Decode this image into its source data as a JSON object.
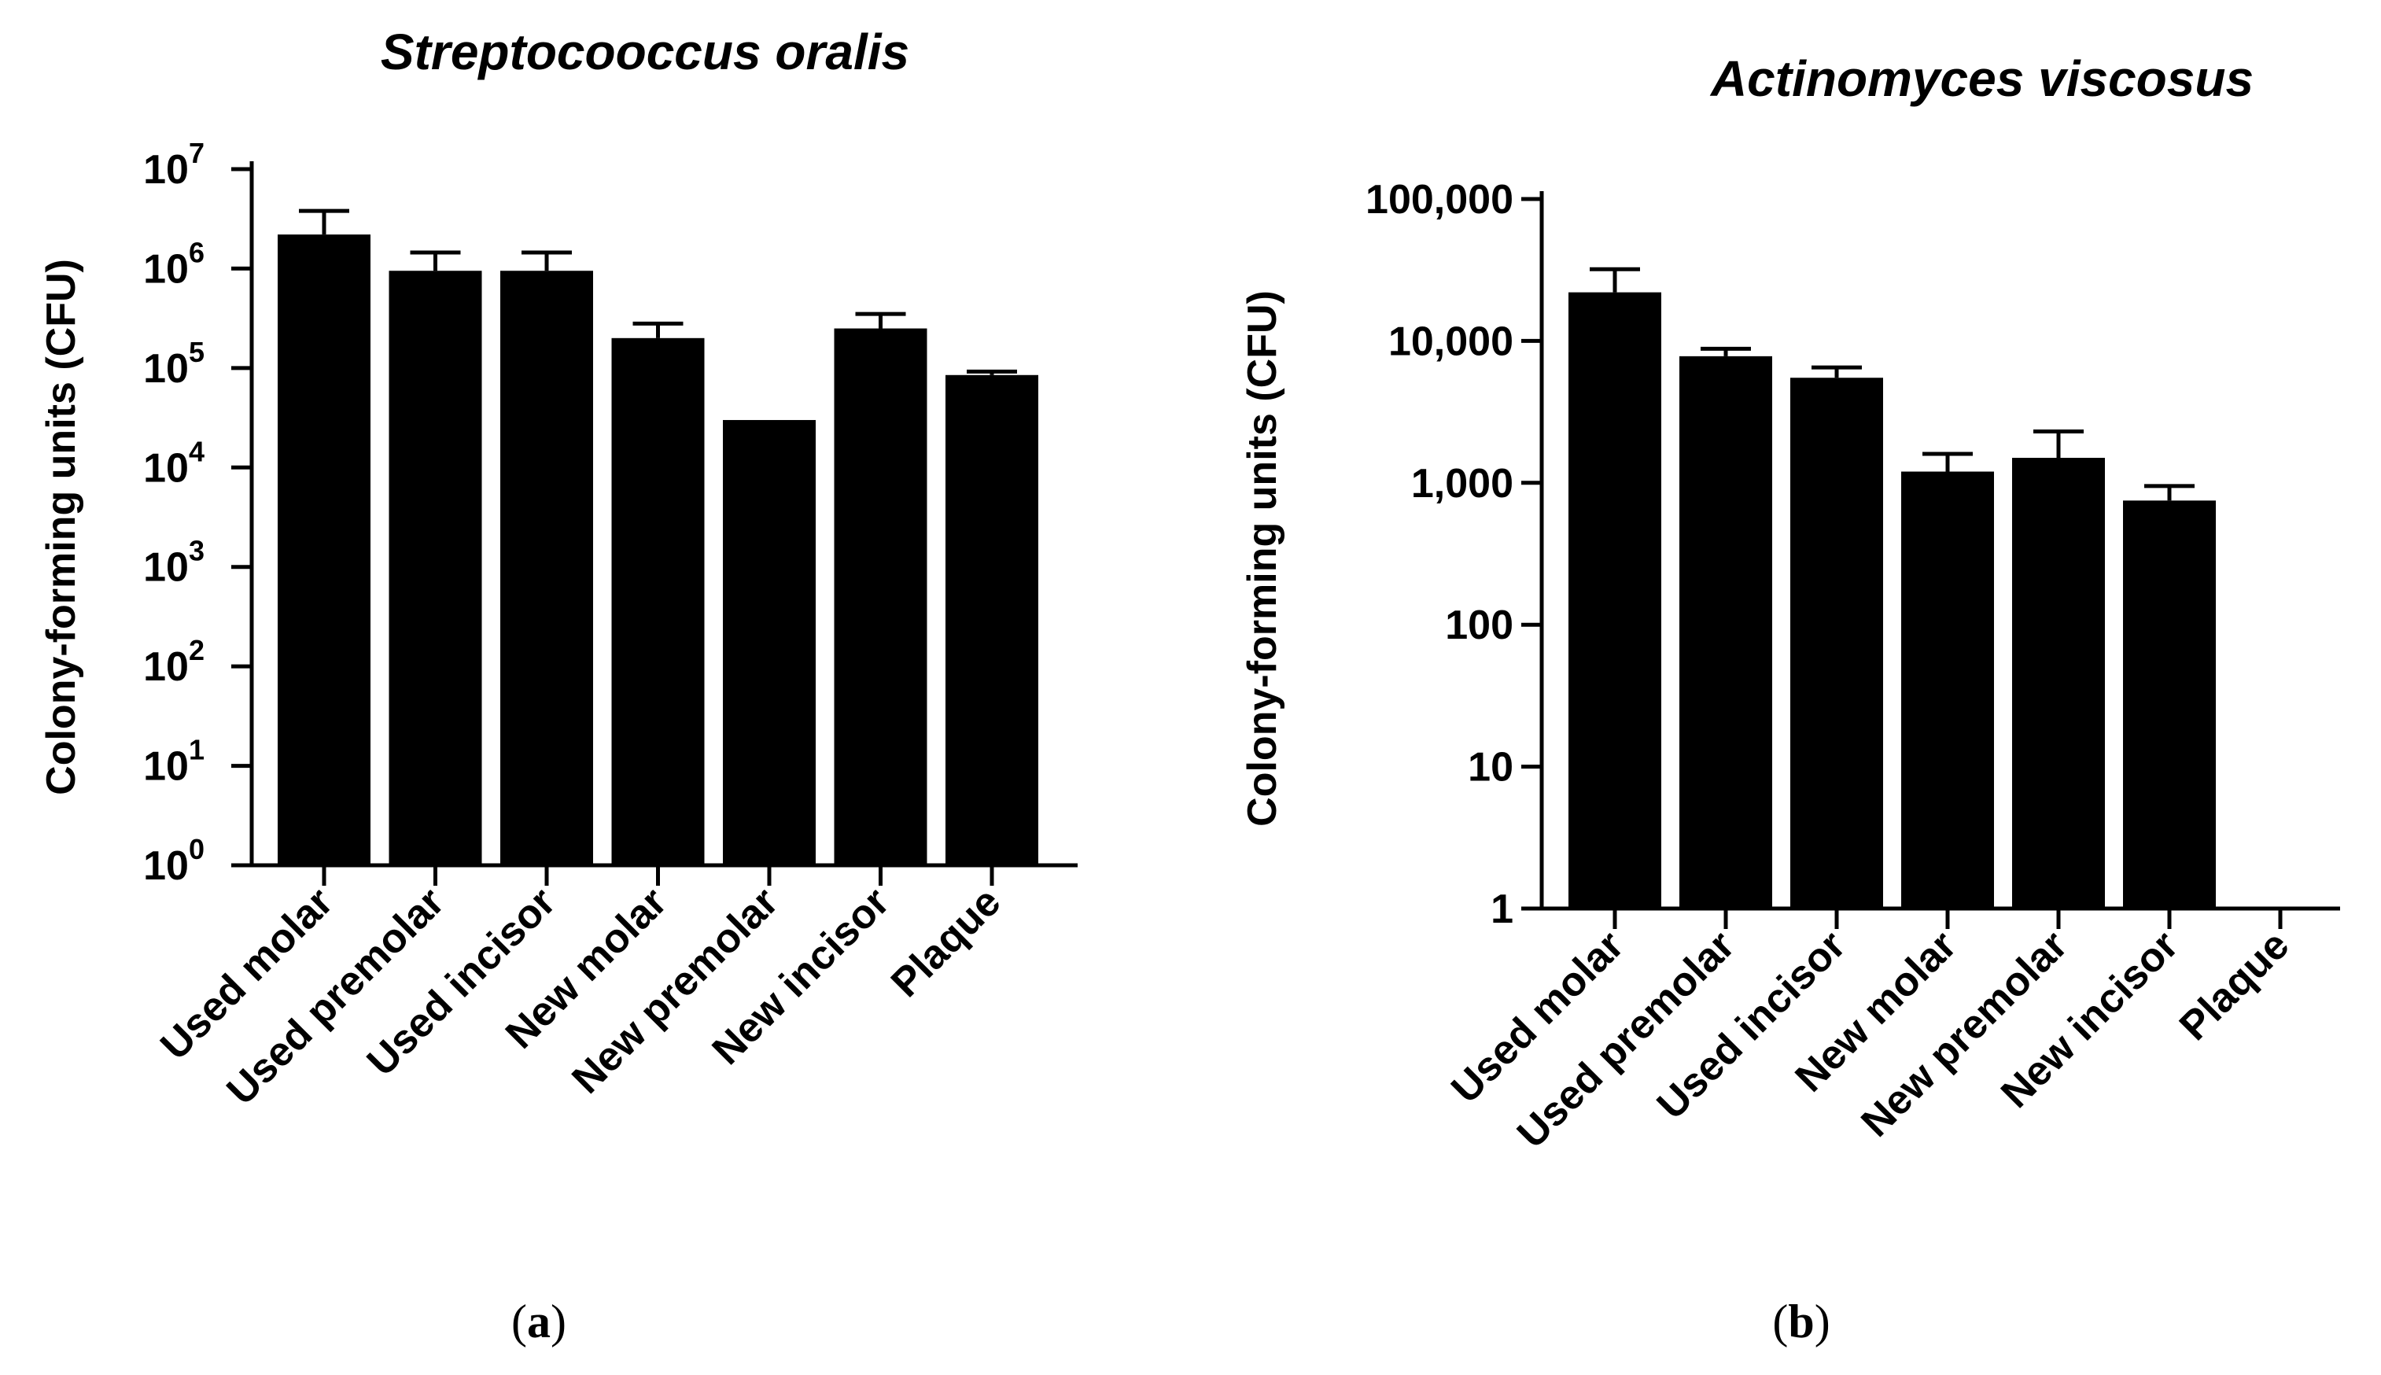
{
  "chart_data": [
    {
      "type": "bar",
      "scale": "log",
      "title": "Streptocooccus oralis",
      "panel_label": "a",
      "xlabel": "",
      "ylabel": "Colony-forming units (CFU)",
      "categories": [
        "Used molar",
        "Used premolar",
        "Used incisor",
        "New molar",
        "New premolar",
        "New incisor",
        "Plaque"
      ],
      "values": [
        2200000,
        950000,
        950000,
        200000,
        30000,
        250000,
        85000
      ],
      "error_upper": [
        3800000,
        1450000,
        1450000,
        280000,
        30000,
        350000,
        92000
      ],
      "ylim": [
        1,
        10000000
      ],
      "tick_labels": [
        {
          "base": "10",
          "exp": "0"
        },
        {
          "base": "10",
          "exp": "1"
        },
        {
          "base": "10",
          "exp": "2"
        },
        {
          "base": "10",
          "exp": "3"
        },
        {
          "base": "10",
          "exp": "4"
        },
        {
          "base": "10",
          "exp": "5"
        },
        {
          "base": "10",
          "exp": "6"
        },
        {
          "base": "10",
          "exp": "7"
        }
      ],
      "bar_color": "#000000"
    },
    {
      "type": "bar",
      "scale": "log",
      "title": "Actinomyces viscosus",
      "panel_label": "b",
      "xlabel": "",
      "ylabel": "Colony-forming units (CFU)",
      "categories": [
        "Used molar",
        "Used premolar",
        "Used incisor",
        "New molar",
        "New premolar",
        "New incisor",
        "Plaque"
      ],
      "values": [
        22000,
        7800,
        5500,
        1200,
        1500,
        750,
        null
      ],
      "error_upper": [
        32000,
        8800,
        6500,
        1600,
        2300,
        950,
        null
      ],
      "ylim": [
        1,
        100000
      ],
      "tick_labels": [
        "1",
        "10",
        "100",
        "1,000",
        "10,000",
        "100,000"
      ],
      "bar_color": "#000000"
    }
  ]
}
